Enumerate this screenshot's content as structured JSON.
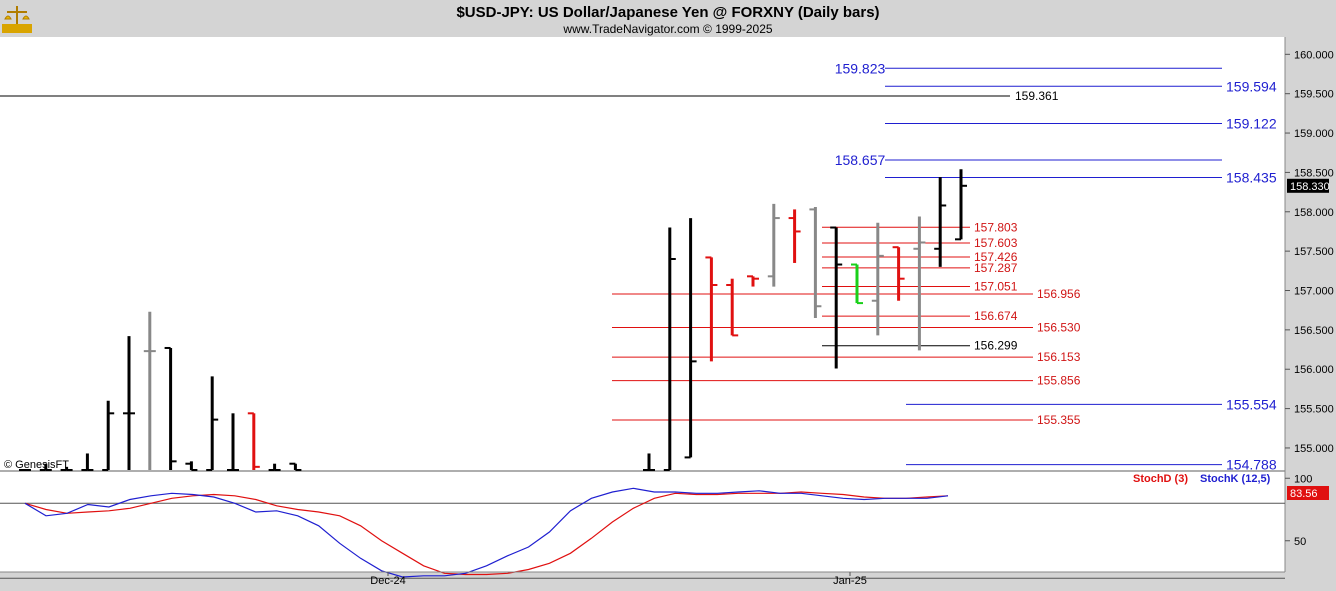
{
  "header": {
    "title": "$USD-JPY:  US Dollar/Japanese Yen @ FORXNY  (Daily bars)",
    "subtitle": "www.TradeNavigator.com © 1999-2025",
    "logo_icon": "gold-scales-icon"
  },
  "watermark": "© GenesisFT",
  "colors": {
    "background": "#ffffff",
    "frame": "#d4d4d4",
    "bar_black": "#000000",
    "bar_grey": "#888888",
    "bar_red": "#e01010",
    "bar_green": "#19d019",
    "level_blue": "#1f1fd0",
    "level_red": "#d01515",
    "stoch_d": "#e01010",
    "stoch_k": "#1f1fd0"
  },
  "chart_data": [
    {
      "type": "ohlc",
      "title": "$USD-JPY:  US Dollar/Japanese Yen @ FORXNY  (Daily bars)",
      "ylim": [
        154.72,
        160.22
      ],
      "y_ticks": [
        "160.000",
        "159.500",
        "159.000",
        "158.500",
        "158.000",
        "157.500",
        "157.000",
        "156.500",
        "156.000",
        "155.500",
        "155.000"
      ],
      "x_ticks": [
        "Dec-24",
        "Jan-25"
      ],
      "last_price": "158.330",
      "bars": [
        {
          "i": 0,
          "o": 154.72,
          "h": 154.72,
          "l": 154.72,
          "c": 154.72,
          "color": "black"
        },
        {
          "i": 1,
          "o": 154.72,
          "h": 154.8,
          "l": 154.72,
          "c": 154.72,
          "color": "black"
        },
        {
          "i": 2,
          "o": 154.72,
          "h": 154.76,
          "l": 154.72,
          "c": 154.72,
          "color": "black"
        },
        {
          "i": 3,
          "o": 154.72,
          "h": 154.93,
          "l": 154.72,
          "c": 154.72,
          "color": "black"
        },
        {
          "i": 4,
          "o": 154.72,
          "h": 155.6,
          "l": 154.72,
          "c": 155.44,
          "color": "black"
        },
        {
          "i": 5,
          "o": 155.44,
          "h": 156.42,
          "l": 154.72,
          "c": 155.44,
          "color": "black"
        },
        {
          "i": 6,
          "o": 156.23,
          "h": 156.73,
          "l": 154.72,
          "c": 156.23,
          "color": "grey"
        },
        {
          "i": 7,
          "o": 156.27,
          "h": 156.27,
          "l": 154.72,
          "c": 154.83,
          "color": "black"
        },
        {
          "i": 8,
          "o": 154.8,
          "h": 154.83,
          "l": 154.72,
          "c": 154.72,
          "color": "black"
        },
        {
          "i": 9,
          "o": 154.72,
          "h": 155.91,
          "l": 154.72,
          "c": 155.36,
          "color": "black"
        },
        {
          "i": 10,
          "o": 154.72,
          "h": 155.44,
          "l": 154.72,
          "c": 154.72,
          "color": "black"
        },
        {
          "i": 11,
          "o": 155.44,
          "h": 155.44,
          "l": 154.72,
          "c": 154.76,
          "color": "red"
        },
        {
          "i": 12,
          "o": 154.72,
          "h": 154.8,
          "l": 154.72,
          "c": 154.72,
          "color": "black"
        },
        {
          "i": 13,
          "o": 154.8,
          "h": 154.8,
          "l": 154.72,
          "c": 154.72,
          "color": "black"
        },
        {
          "i": 30,
          "o": 154.72,
          "h": 154.93,
          "l": 154.72,
          "c": 154.72,
          "color": "black"
        },
        {
          "i": 31,
          "o": 154.72,
          "h": 157.8,
          "l": 154.72,
          "c": 157.4,
          "color": "black"
        },
        {
          "i": 32,
          "o": 154.88,
          "h": 157.92,
          "l": 154.88,
          "c": 156.1,
          "color": "black"
        },
        {
          "i": 33,
          "o": 157.42,
          "h": 157.42,
          "l": 156.1,
          "c": 157.07,
          "color": "red"
        },
        {
          "i": 34,
          "o": 157.07,
          "h": 157.15,
          "l": 156.43,
          "c": 156.43,
          "color": "red"
        },
        {
          "i": 35,
          "o": 157.18,
          "h": 157.18,
          "l": 157.05,
          "c": 157.15,
          "color": "red"
        },
        {
          "i": 36,
          "o": 157.18,
          "h": 158.1,
          "l": 157.05,
          "c": 157.92,
          "color": "grey"
        },
        {
          "i": 37,
          "o": 157.92,
          "h": 158.03,
          "l": 157.35,
          "c": 157.75,
          "color": "red"
        },
        {
          "i": 38,
          "o": 158.03,
          "h": 158.06,
          "l": 156.65,
          "c": 156.8,
          "color": "grey"
        },
        {
          "i": 39,
          "o": 157.8,
          "h": 157.8,
          "l": 156.01,
          "c": 157.33,
          "color": "black"
        },
        {
          "i": 40,
          "o": 157.33,
          "h": 157.33,
          "l": 156.84,
          "c": 156.84,
          "color": "green"
        },
        {
          "i": 41,
          "o": 156.87,
          "h": 157.86,
          "l": 156.43,
          "c": 157.44,
          "color": "grey"
        },
        {
          "i": 42,
          "o": 157.55,
          "h": 157.55,
          "l": 156.87,
          "c": 157.15,
          "color": "red"
        },
        {
          "i": 43,
          "o": 157.53,
          "h": 157.94,
          "l": 156.24,
          "c": 157.61,
          "color": "grey"
        },
        {
          "i": 44,
          "o": 157.53,
          "h": 158.44,
          "l": 157.3,
          "c": 158.08,
          "color": "black"
        },
        {
          "i": 45,
          "o": 157.65,
          "h": 158.54,
          "l": 157.65,
          "c": 158.33,
          "color": "black"
        }
      ],
      "levels": [
        {
          "value": "159.823",
          "color": "blue",
          "side": "left"
        },
        {
          "value": "159.594",
          "color": "blue",
          "side": "right"
        },
        {
          "value": "159.361",
          "color": "black",
          "side": "right"
        },
        {
          "value": "159.122",
          "color": "blue",
          "side": "right"
        },
        {
          "value": "158.657",
          "color": "blue",
          "side": "left"
        },
        {
          "value": "158.435",
          "color": "blue",
          "side": "right"
        },
        {
          "value": "157.803",
          "color": "red",
          "side": "right"
        },
        {
          "value": "157.603",
          "color": "red",
          "side": "right"
        },
        {
          "value": "157.426",
          "color": "red",
          "side": "right"
        },
        {
          "value": "157.287",
          "color": "red",
          "side": "right"
        },
        {
          "value": "157.051",
          "color": "red",
          "side": "right"
        },
        {
          "value": "156.956",
          "color": "red",
          "side": "right"
        },
        {
          "value": "156.674",
          "color": "red",
          "side": "right"
        },
        {
          "value": "156.530",
          "color": "red",
          "side": "right"
        },
        {
          "value": "156.299",
          "color": "black",
          "side": "right"
        },
        {
          "value": "156.153",
          "color": "red",
          "side": "right"
        },
        {
          "value": "155.856",
          "color": "red",
          "side": "right"
        },
        {
          "value": "155.554",
          "color": "blue",
          "side": "right"
        },
        {
          "value": "155.355",
          "color": "red",
          "side": "right"
        },
        {
          "value": "154.788",
          "color": "blue",
          "side": "right"
        }
      ]
    },
    {
      "type": "line",
      "title": "",
      "ylim": [
        25,
        105
      ],
      "y_ticks": [
        "100",
        "50"
      ],
      "ref_lines": [
        80,
        20
      ],
      "last_value": "83.56",
      "series": [
        {
          "name": "StochD (3)",
          "color": "red",
          "values": [
            80,
            75,
            72,
            73,
            74,
            76,
            80,
            84,
            86,
            87,
            86,
            83,
            78,
            75,
            73,
            70,
            62,
            50,
            40,
            30,
            24,
            23,
            23,
            24,
            27,
            32,
            40,
            52,
            65,
            76,
            84,
            88,
            87,
            87,
            88,
            88,
            88,
            89,
            88,
            87,
            85,
            84,
            84,
            85,
            86
          ]
        },
        {
          "name": "StochK (12,5)",
          "color": "blue",
          "values": [
            80,
            70,
            72,
            79,
            77,
            83,
            86,
            88,
            87,
            85,
            80,
            73,
            74,
            70,
            62,
            48,
            36,
            26,
            21,
            22,
            22,
            24,
            30,
            38,
            45,
            57,
            74,
            84,
            89,
            92,
            89,
            89,
            88,
            88,
            89,
            90,
            88,
            88,
            86,
            84,
            83,
            84,
            84,
            84,
            86
          ]
        }
      ]
    }
  ]
}
